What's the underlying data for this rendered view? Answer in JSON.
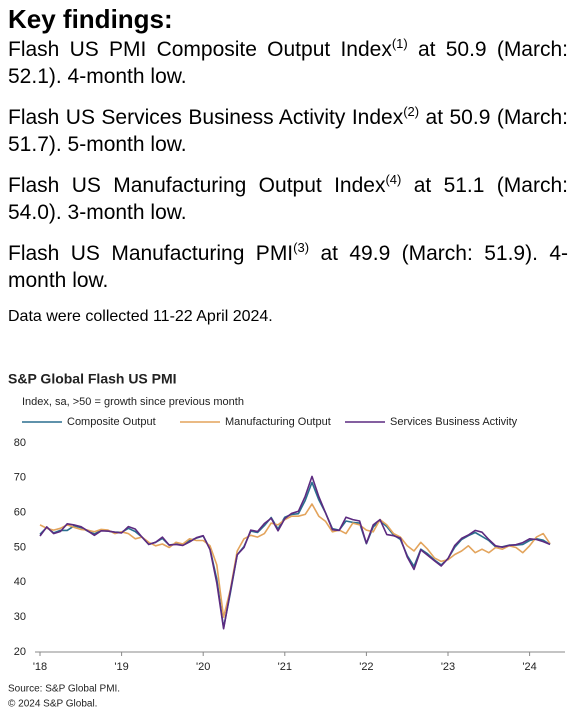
{
  "header": {
    "title": "Key findings:"
  },
  "findings": [
    {
      "text": "Flash US PMI Composite Output Index",
      "note": "(1)",
      "rest": "at 50.9 (March: 52.1). 4-month low."
    },
    {
      "text": "Flash US Services Business Activity Index",
      "note": "(2)",
      "rest": "at 50.9 (March: 51.7). 5-month low."
    },
    {
      "text": "Flash US Manufacturing Output Index",
      "note": "(4)",
      "rest": "at 51.1 (March: 54.0). 3-month low."
    },
    {
      "text": "Flash US Manufacturing PMI",
      "note": "(3)",
      "rest": "at 49.9 (March: 51.9). 4-month low."
    }
  ],
  "collection_note": "Data were collected 11-22 April 2024.",
  "chart_data": {
    "type": "line",
    "title": "S&P Global Flash US PMI",
    "subtitle": "Index, sa, >50 = growth  since previous  month",
    "categories": [
      "'18",
      null,
      null,
      null,
      null,
      null,
      null,
      null,
      null,
      null,
      null,
      null,
      "'19",
      null,
      null,
      null,
      null,
      null,
      null,
      null,
      null,
      null,
      null,
      null,
      "'20",
      null,
      null,
      null,
      null,
      null,
      null,
      null,
      null,
      null,
      null,
      null,
      "'21",
      null,
      null,
      null,
      null,
      null,
      null,
      null,
      null,
      null,
      null,
      null,
      "'22",
      null,
      null,
      null,
      null,
      null,
      null,
      null,
      null,
      null,
      null,
      null,
      "'23",
      null,
      null,
      null,
      null,
      null,
      null,
      null,
      null,
      null,
      null,
      null,
      "'24",
      null,
      null,
      null
    ],
    "series": [
      {
        "name": "Composite Output",
        "color": "#2a6f8f",
        "values": [
          53.8,
          55.8,
          54.2,
          54.9,
          54.9,
          56.2,
          55.7,
          54.7,
          53.9,
          54.9,
          54.7,
          54.4,
          54.4,
          55.5,
          54.6,
          53.0,
          50.9,
          51.5,
          52.6,
          50.7,
          51.0,
          50.9,
          52.0,
          52.7,
          53.3,
          49.6,
          40.9,
          27.0,
          37.0,
          47.9,
          50.3,
          54.7,
          54.3,
          56.3,
          58.6,
          55.3,
          58.7,
          59.5,
          59.7,
          63.5,
          68.7,
          63.7,
          59.9,
          55.4,
          55.0,
          57.6,
          57.2,
          57.0,
          51.1,
          55.9,
          57.7,
          56.0,
          53.6,
          52.3,
          47.7,
          44.6,
          49.5,
          48.2,
          46.4,
          45.0,
          46.8,
          50.1,
          52.3,
          53.4,
          54.3,
          53.2,
          52.0,
          50.2,
          50.2,
          50.7,
          50.7,
          50.9,
          52.0,
          52.5,
          52.1,
          50.9
        ]
      },
      {
        "name": "Manufacturing Output",
        "color": "#e3a45c",
        "values": [
          56.5,
          55.5,
          55.0,
          55.5,
          56.5,
          55.8,
          55.2,
          55.0,
          54.5,
          55.2,
          55.0,
          54.0,
          54.5,
          54.0,
          52.5,
          53.0,
          51.5,
          50.5,
          51.0,
          50.0,
          51.5,
          51.0,
          52.5,
          52.0,
          52.0,
          50.5,
          45.0,
          30.0,
          38.0,
          49.0,
          52.5,
          53.5,
          53.0,
          54.0,
          57.0,
          56.5,
          58.0,
          59.0,
          59.0,
          59.5,
          62.5,
          59.0,
          57.5,
          54.5,
          55.0,
          54.0,
          57.0,
          56.5,
          55.0,
          54.5,
          58.0,
          56.5,
          54.0,
          53.0,
          50.5,
          49.0,
          51.5,
          49.5,
          47.0,
          46.0,
          46.5,
          48.0,
          49.0,
          50.5,
          48.5,
          49.5,
          48.5,
          50.0,
          49.5,
          50.5,
          50.0,
          48.5,
          50.5,
          53.0,
          54.0,
          51.1
        ]
      },
      {
        "name": "Services Business Activity",
        "color": "#5c2a80",
        "values": [
          53.3,
          55.9,
          54.0,
          54.6,
          56.8,
          56.5,
          56.0,
          54.8,
          53.5,
          54.8,
          54.7,
          54.4,
          54.2,
          56.0,
          55.3,
          53.0,
          50.9,
          51.5,
          53.0,
          50.7,
          50.9,
          50.6,
          51.6,
          52.8,
          53.4,
          49.4,
          39.8,
          26.7,
          37.5,
          47.9,
          50.0,
          55.0,
          54.6,
          56.9,
          58.4,
          54.8,
          58.3,
          59.8,
          60.4,
          64.7,
          70.4,
          64.6,
          59.9,
          55.1,
          54.9,
          58.7,
          58.0,
          57.6,
          51.2,
          56.5,
          58.0,
          53.7,
          53.4,
          52.7,
          47.3,
          43.7,
          49.3,
          47.8,
          46.2,
          44.7,
          46.8,
          50.6,
          52.6,
          53.6,
          54.9,
          54.4,
          52.3,
          50.5,
          50.1,
          50.6,
          50.8,
          51.4,
          52.5,
          52.3,
          51.7,
          50.9
        ]
      }
    ],
    "ylim": [
      20,
      80
    ],
    "yticks": [
      20,
      30,
      40,
      50,
      60,
      70,
      80
    ],
    "grid": false,
    "source": "Source: S&P Global PMI.",
    "copyright": "© 2024 S&P Global."
  }
}
